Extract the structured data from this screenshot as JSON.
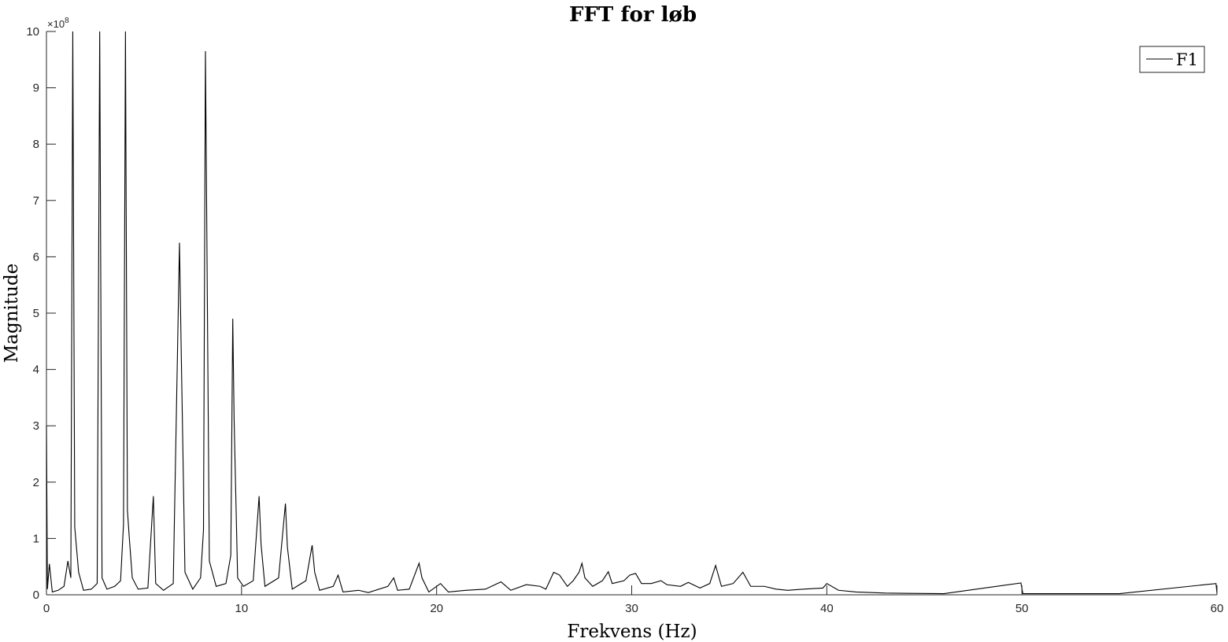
{
  "chart_data": {
    "type": "line",
    "title": "FFT for løb",
    "xlabel": "Frekvens (Hz)",
    "ylabel": "Magnitude",
    "xlim": [
      0,
      60
    ],
    "ylim": [
      0,
      1000000000
    ],
    "x_ticks": [
      0,
      10,
      20,
      30,
      40,
      50,
      60
    ],
    "x_tick_labels": [
      "0",
      "10",
      "20",
      "30",
      "40",
      "50",
      "60"
    ],
    "y_ticks": [
      0,
      100000000,
      200000000,
      300000000,
      400000000,
      500000000,
      600000000,
      700000000,
      800000000,
      900000000,
      1000000000
    ],
    "y_tick_labels": [
      "0",
      "1",
      "2",
      "3",
      "4",
      "5",
      "6",
      "7",
      "8",
      "9",
      "10"
    ],
    "y_exponent_label": "×10^8",
    "grid": false,
    "legend_position": "top-right",
    "series": [
      {
        "name": "F1",
        "color": "#000000",
        "points": [
          [
            0,
            300000000.0
          ],
          [
            0.05,
            10000000.0
          ],
          [
            0.15,
            55000000.0
          ],
          [
            0.3,
            5000000.0
          ],
          [
            0.6,
            8000000.0
          ],
          [
            0.9,
            15000000.0
          ],
          [
            1.1,
            60000000.0
          ],
          [
            1.25,
            30000000.0
          ],
          [
            1.35,
            1000000000.0
          ],
          [
            1.45,
            120000000.0
          ],
          [
            1.55,
            80000000.0
          ],
          [
            1.65,
            40000000.0
          ],
          [
            1.9,
            8000000.0
          ],
          [
            2.3,
            10000000.0
          ],
          [
            2.6,
            20000000.0
          ],
          [
            2.73,
            1000000000.0
          ],
          [
            2.85,
            30000000.0
          ],
          [
            3.1,
            10000000.0
          ],
          [
            3.5,
            15000000.0
          ],
          [
            3.8,
            25000000.0
          ],
          [
            3.95,
            125000000.0
          ],
          [
            4.05,
            1000000000.0
          ],
          [
            4.15,
            150000000.0
          ],
          [
            4.25,
            100000000.0
          ],
          [
            4.4,
            30000000.0
          ],
          [
            4.7,
            10000000.0
          ],
          [
            5.2,
            12000000.0
          ],
          [
            5.48,
            175000000.0
          ],
          [
            5.6,
            20000000.0
          ],
          [
            6.0,
            8000000.0
          ],
          [
            6.5,
            20000000.0
          ],
          [
            6.82,
            625000000.0
          ],
          [
            6.9,
            450000000.0
          ],
          [
            7.1,
            40000000.0
          ],
          [
            7.5,
            10000000.0
          ],
          [
            7.9,
            30000000.0
          ],
          [
            8.05,
            115000000.0
          ],
          [
            8.15,
            965000000.0
          ],
          [
            8.22,
            650000000.0
          ],
          [
            8.35,
            60000000.0
          ],
          [
            8.7,
            15000000.0
          ],
          [
            9.2,
            20000000.0
          ],
          [
            9.45,
            70000000.0
          ],
          [
            9.55,
            490000000.0
          ],
          [
            9.62,
            310000000.0
          ],
          [
            9.8,
            30000000.0
          ],
          [
            10.1,
            15000000.0
          ],
          [
            10.6,
            25000000.0
          ],
          [
            10.9,
            175000000.0
          ],
          [
            11.0,
            90000000.0
          ],
          [
            11.2,
            15000000.0
          ],
          [
            11.9,
            30000000.0
          ],
          [
            12.25,
            162000000.0
          ],
          [
            12.35,
            85000000.0
          ],
          [
            12.6,
            10000000.0
          ],
          [
            13.3,
            25000000.0
          ],
          [
            13.62,
            88000000.0
          ],
          [
            13.75,
            40000000.0
          ],
          [
            14.0,
            8000000.0
          ],
          [
            14.7,
            15000000.0
          ],
          [
            14.95,
            35000000.0
          ],
          [
            15.2,
            5000000.0
          ],
          [
            16.0,
            8000000.0
          ],
          [
            16.5,
            4000000.0
          ],
          [
            17.5,
            15000000.0
          ],
          [
            17.8,
            30000000.0
          ],
          [
            18.0,
            8000000.0
          ],
          [
            18.6,
            10000000.0
          ],
          [
            19.1,
            56000000.0
          ],
          [
            19.25,
            30000000.0
          ],
          [
            19.6,
            5000000.0
          ],
          [
            20.2,
            20000000.0
          ],
          [
            20.6,
            5000000.0
          ],
          [
            21.5,
            8000000.0
          ],
          [
            22.5,
            10000000.0
          ],
          [
            23.3,
            23000000.0
          ],
          [
            23.8,
            8000000.0
          ],
          [
            24.6,
            18000000.0
          ],
          [
            25.3,
            15000000.0
          ],
          [
            25.6,
            10000000.0
          ],
          [
            26.0,
            40000000.0
          ],
          [
            26.3,
            35000000.0
          ],
          [
            26.7,
            15000000.0
          ],
          [
            27.0,
            25000000.0
          ],
          [
            27.3,
            40000000.0
          ],
          [
            27.45,
            56000000.0
          ],
          [
            27.6,
            30000000.0
          ],
          [
            28.0,
            15000000.0
          ],
          [
            28.5,
            25000000.0
          ],
          [
            28.8,
            41000000.0
          ],
          [
            29.0,
            20000000.0
          ],
          [
            29.6,
            25000000.0
          ],
          [
            29.9,
            35000000.0
          ],
          [
            30.2,
            38000000.0
          ],
          [
            30.5,
            20000000.0
          ],
          [
            31.0,
            20000000.0
          ],
          [
            31.5,
            25000000.0
          ],
          [
            31.8,
            18000000.0
          ],
          [
            32.5,
            15000000.0
          ],
          [
            32.9,
            22000000.0
          ],
          [
            33.5,
            12000000.0
          ],
          [
            34.0,
            20000000.0
          ],
          [
            34.3,
            52000000.0
          ],
          [
            34.6,
            15000000.0
          ],
          [
            35.2,
            20000000.0
          ],
          [
            35.7,
            40000000.0
          ],
          [
            36.1,
            15000000.0
          ],
          [
            36.8,
            15000000.0
          ],
          [
            37.4,
            10000000.0
          ],
          [
            38.0,
            8000000.0
          ],
          [
            38.8,
            10000000.0
          ],
          [
            39.8,
            12000000.0
          ],
          [
            40.0,
            20000000.0
          ],
          [
            40.6,
            8000000.0
          ],
          [
            41.5,
            5000000.0
          ],
          [
            43.0,
            3000000.0
          ],
          [
            46.0,
            2000000.0
          ],
          [
            49.95,
            21000000.0
          ],
          [
            50.05,
            2000000.0
          ],
          [
            55.0,
            2000000.0
          ],
          [
            59.95,
            20000000.0
          ],
          [
            60,
            2000000.0
          ]
        ]
      }
    ]
  }
}
